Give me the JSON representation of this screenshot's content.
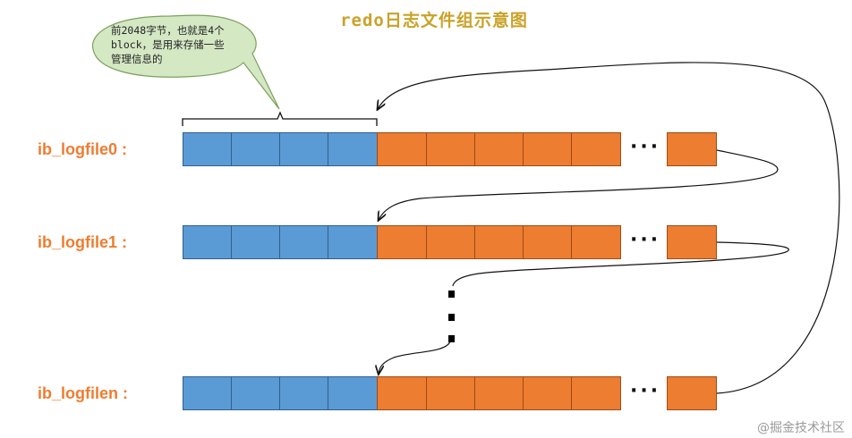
{
  "title": "redo日志文件组示意图",
  "callout": {
    "line1": "前2048字节，也就是4个",
    "line2": "block，是用来存储一些",
    "line3": "管理信息的"
  },
  "rows": [
    {
      "label": "ib_logfile0 :"
    },
    {
      "label": "ib_logfile1 :"
    },
    {
      "label": "ib_logfilen :"
    }
  ],
  "ellipsis": "···",
  "watermark": "@掘金技术社区",
  "colors": {
    "header_block": "#5B9BD5",
    "data_block": "#ED7D31",
    "label": "#ED7D31",
    "title": "#C9A227",
    "callout_fill": "#D5E8C4"
  }
}
